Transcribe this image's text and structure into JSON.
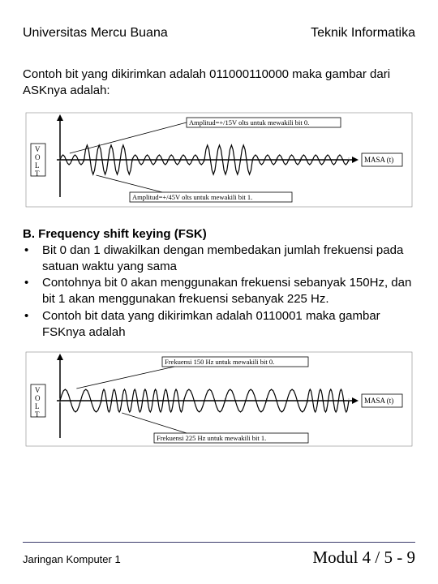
{
  "header": {
    "left": "Universitas Mercu Buana",
    "right": "Teknik Informatika"
  },
  "intro": "Contoh bit yang dikirimkan adalah 011000110000 maka gambar dari ASKnya adalah:",
  "ask_diagram": {
    "type": "waveform",
    "y_label_chars": [
      "V",
      "O",
      "L",
      "T"
    ],
    "label_top": "Amplitud=+/15V olts untuk mewakili bit 0.",
    "label_bottom": "Amplitud=+/45V olts untuk mewakili bit 1.",
    "x_label": "MASA (t)",
    "bits": [
      0,
      1,
      1,
      0,
      0,
      0,
      1,
      1,
      0,
      0,
      0,
      0
    ],
    "amp_low": 6,
    "amp_high": 18,
    "cycles_per_bit": 2,
    "stroke": "#000000",
    "grid": "#888888"
  },
  "section_b": {
    "title": "B. Frequency shift keying (FSK)",
    "bullets": [
      "Bit 0 dan 1 diwakilkan dengan membedakan jumlah frekuensi pada satuan waktu yang sama",
      "Contohnya bit 0 akan menggunakan frekuensi sebanyak 150Hz, dan bit 1 akan menggunakan frekuensi sebanyak 225 Hz.",
      "Contoh bit data yang dikirimkan adalah 0110001 maka gambar FSKnya adalah"
    ]
  },
  "fsk_diagram": {
    "type": "waveform",
    "y_label_chars": [
      "V",
      "O",
      "L",
      "T"
    ],
    "label_top": "Frekuensi 150 Hz untuk mewakili bit 0.",
    "label_bottom": "Frekuensi 225 Hz untuk mewakili bit 1.",
    "x_label": "MASA (t)",
    "bits": [
      0,
      1,
      1,
      0,
      0,
      0,
      1
    ],
    "freq_low": 2,
    "freq_high": 4,
    "amplitude": 14,
    "stroke": "#000000",
    "grid": "#888888"
  },
  "footer": {
    "left": "Jaringan Komputer 1",
    "right": "Modul 4 / 5 - 9"
  }
}
